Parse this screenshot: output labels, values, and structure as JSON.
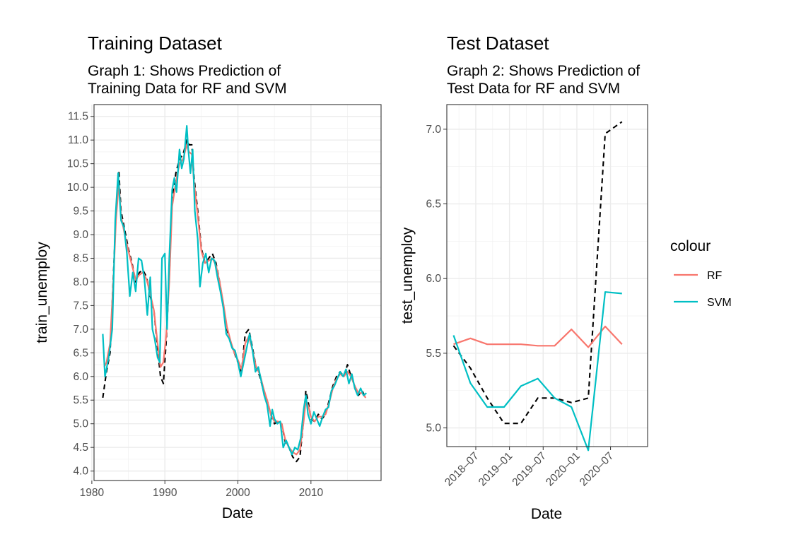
{
  "chart_data": [
    {
      "type": "line",
      "title": "Training Dataset",
      "subtitle": [
        "Graph 1: Shows Prediction of",
        "Training Data for RF and SVM"
      ],
      "xlabel": "Date",
      "ylabel": "train_unemploy",
      "xlim": [
        1980.3,
        2019.6
      ],
      "ylim": [
        3.8,
        11.75
      ],
      "xticks": [
        1980,
        1990,
        2000,
        2010
      ],
      "xtick_labels": [
        "1980",
        "1990",
        "2000",
        "2010"
      ],
      "yticks": [
        4.0,
        4.5,
        5.0,
        5.5,
        6.0,
        6.5,
        7.0,
        7.5,
        8.0,
        8.5,
        9.0,
        9.5,
        10.0,
        10.5,
        11.0,
        11.5
      ],
      "ytick_labels": [
        "4.0",
        "4.5",
        "5.0",
        "5.5",
        "6.0",
        "6.5",
        "7.0",
        "7.5",
        "8.0",
        "8.5",
        "9.0",
        "9.5",
        "10.0",
        "10.5",
        "11.0",
        "11.5"
      ],
      "grid": true,
      "series": [
        {
          "name": "",
          "color": "#000000",
          "dash": true,
          "x": [
            1981.5,
            1982.0,
            1982.5,
            1983.0,
            1983.3,
            1983.7,
            1984.0,
            1984.5,
            1985.0,
            1985.5,
            1986.0,
            1986.5,
            1987.0,
            1987.5,
            1988.0,
            1988.5,
            1989.0,
            1989.4,
            1989.8,
            1990.2,
            1990.6,
            1991.0,
            1991.5,
            1992.0,
            1992.5,
            1993.0,
            1993.3,
            1993.7,
            1994.0,
            1994.5,
            1995.0,
            1995.5,
            1996.0,
            1996.5,
            1997.0,
            1997.5,
            1998.0,
            1998.5,
            1999.0,
            1999.5,
            2000.0,
            2000.5,
            2001.0,
            2001.5,
            2002.0,
            2002.5,
            2003.0,
            2003.5,
            2004.0,
            2004.5,
            2005.0,
            2005.5,
            2006.0,
            2006.5,
            2007.0,
            2007.5,
            2008.0,
            2008.5,
            2009.0,
            2009.3,
            2009.7,
            2010.0,
            2010.5,
            2011.0,
            2011.5,
            2012.0,
            2012.5,
            2013.0,
            2013.5,
            2014.0,
            2014.5,
            2015.0,
            2015.5,
            2016.0,
            2016.5,
            2017.0,
            2017.5
          ],
          "y": [
            5.55,
            6.1,
            6.5,
            8.3,
            9.4,
            10.35,
            9.5,
            9.1,
            8.7,
            8.4,
            8.0,
            8.2,
            8.25,
            8.1,
            7.7,
            7.4,
            6.6,
            6.0,
            5.85,
            6.8,
            8.1,
            9.7,
            10.3,
            10.6,
            10.7,
            11.0,
            10.9,
            10.9,
            10.2,
            9.5,
            8.7,
            8.4,
            8.5,
            8.6,
            8.4,
            8.0,
            7.5,
            7.0,
            6.7,
            6.5,
            6.3,
            6.1,
            6.9,
            7.0,
            6.6,
            6.2,
            6.0,
            5.7,
            5.5,
            5.2,
            5.0,
            5.05,
            5.0,
            4.6,
            4.5,
            4.3,
            4.2,
            4.3,
            5.1,
            5.7,
            5.4,
            5.1,
            5.05,
            5.2,
            5.1,
            5.2,
            5.5,
            5.8,
            6.0,
            6.1,
            6.0,
            6.25,
            6.0,
            5.8,
            5.6,
            5.7,
            5.55
          ]
        },
        {
          "name": "RF",
          "color": "#F8766D",
          "dash": false,
          "x": [
            1981.7,
            1982.0,
            1982.5,
            1983.0,
            1983.3,
            1983.7,
            1984.0,
            1984.5,
            1985.0,
            1985.5,
            1986.0,
            1986.5,
            1987.0,
            1987.5,
            1988.0,
            1988.5,
            1989.0,
            1989.4,
            1989.8,
            1990.2,
            1990.6,
            1991.0,
            1991.5,
            1992.0,
            1992.5,
            1993.0,
            1993.3,
            1993.7,
            1994.0,
            1994.5,
            1995.0,
            1995.5,
            1996.0,
            1996.5,
            1997.0,
            1997.5,
            1998.0,
            1998.5,
            1999.0,
            1999.5,
            2000.0,
            2000.5,
            2001.0,
            2001.5,
            2002.0,
            2002.5,
            2003.0,
            2003.5,
            2004.0,
            2004.5,
            2005.0,
            2005.5,
            2006.0,
            2006.5,
            2007.0,
            2007.5,
            2008.0,
            2008.5,
            2009.0,
            2009.3,
            2009.7,
            2010.0,
            2010.5,
            2011.0,
            2011.5,
            2012.0,
            2012.5,
            2013.0,
            2013.5,
            2014.0,
            2014.5,
            2015.0,
            2015.5,
            2016.0,
            2016.5,
            2017.0,
            2017.5
          ],
          "y": [
            6.2,
            6.3,
            6.7,
            8.2,
            9.3,
            10.1,
            9.4,
            9.0,
            8.65,
            8.35,
            8.05,
            8.15,
            8.2,
            8.05,
            7.75,
            7.4,
            6.7,
            6.2,
            6.3,
            6.9,
            8.0,
            9.6,
            10.1,
            10.5,
            10.6,
            10.9,
            10.75,
            10.7,
            10.1,
            9.4,
            8.65,
            8.4,
            8.45,
            8.5,
            8.35,
            8.0,
            7.55,
            7.05,
            6.75,
            6.5,
            6.35,
            6.15,
            6.7,
            6.85,
            6.55,
            6.2,
            6.05,
            5.75,
            5.5,
            5.2,
            5.05,
            5.05,
            5.0,
            4.65,
            4.5,
            4.4,
            4.35,
            4.45,
            5.05,
            5.5,
            5.35,
            5.15,
            5.05,
            5.15,
            5.15,
            5.2,
            5.45,
            5.75,
            5.95,
            6.05,
            6.0,
            6.1,
            6.0,
            5.8,
            5.65,
            5.65,
            5.55
          ]
        },
        {
          "name": "SVM",
          "color": "#00BFC4",
          "dash": false,
          "x": [
            1981.5,
            1981.8,
            1982.3,
            1982.8,
            1983.2,
            1983.6,
            1984.0,
            1984.4,
            1984.8,
            1985.2,
            1985.6,
            1986.0,
            1986.4,
            1986.8,
            1987.2,
            1987.6,
            1988.0,
            1988.3,
            1988.6,
            1989.0,
            1989.3,
            1989.6,
            1990.0,
            1990.3,
            1990.6,
            1991.0,
            1991.3,
            1991.6,
            1992.0,
            1992.3,
            1992.6,
            1993.0,
            1993.2,
            1993.5,
            1993.8,
            1994.1,
            1994.5,
            1994.8,
            1995.2,
            1995.6,
            1996.0,
            1996.4,
            1996.8,
            1997.2,
            1997.6,
            1998.0,
            1998.4,
            1998.8,
            1999.2,
            1999.6,
            2000.0,
            2000.4,
            2000.8,
            2001.2,
            2001.6,
            2002.0,
            2002.4,
            2002.8,
            2003.2,
            2003.6,
            2004.0,
            2004.4,
            2004.7,
            2005.0,
            2005.4,
            2005.8,
            2006.2,
            2006.6,
            2007.0,
            2007.4,
            2007.8,
            2008.2,
            2008.6,
            2009.0,
            2009.3,
            2009.6,
            2010.0,
            2010.4,
            2010.8,
            2011.2,
            2011.6,
            2012.0,
            2012.4,
            2012.8,
            2013.2,
            2013.6,
            2014.0,
            2014.4,
            2014.8,
            2015.2,
            2015.6,
            2016.0,
            2016.4,
            2016.8,
            2017.2,
            2017.6
          ],
          "y": [
            6.9,
            6.0,
            6.4,
            7.0,
            9.3,
            10.3,
            9.3,
            9.15,
            8.6,
            7.7,
            8.2,
            7.8,
            8.5,
            8.45,
            8.05,
            7.3,
            8.1,
            7.0,
            6.8,
            6.4,
            6.3,
            8.5,
            8.6,
            7.0,
            8.5,
            9.95,
            10.2,
            9.9,
            10.8,
            10.4,
            10.6,
            11.3,
            10.8,
            10.3,
            10.8,
            9.5,
            8.9,
            7.9,
            8.4,
            8.6,
            8.2,
            8.5,
            8.45,
            8.1,
            7.8,
            7.45,
            6.9,
            6.8,
            6.6,
            6.55,
            6.3,
            6.0,
            6.3,
            6.6,
            6.9,
            6.55,
            6.1,
            6.2,
            5.9,
            5.6,
            5.4,
            4.95,
            5.3,
            5.1,
            5.0,
            5.05,
            4.5,
            4.65,
            4.5,
            4.35,
            4.5,
            4.45,
            4.7,
            5.3,
            5.6,
            5.2,
            5.0,
            5.25,
            5.1,
            4.95,
            5.15,
            5.3,
            5.35,
            5.7,
            5.8,
            5.95,
            6.1,
            6.0,
            6.15,
            5.85,
            6.05,
            5.75,
            5.6,
            5.75,
            5.6,
            5.65
          ]
        }
      ]
    },
    {
      "type": "line",
      "title": "Test Dataset",
      "subtitle": [
        "Graph 2: Shows Prediction of",
        "Test Data for RF and SVM"
      ],
      "xlabel": "Date",
      "ylabel": "test_unemploy",
      "xlim": [
        2018.07,
        2021.05
      ],
      "ylim": [
        4.875,
        7.165
      ],
      "xticks": [
        2018.5,
        2019.0,
        2019.5,
        2020.0,
        2020.5
      ],
      "xtick_labels": [
        "2018–07",
        "2019–01",
        "2019–07",
        "2020–01",
        "2020–07"
      ],
      "yticks": [
        5.0,
        5.5,
        6.0,
        6.5,
        7.0
      ],
      "ytick_labels": [
        "5.0",
        "5.5",
        "6.0",
        "6.5",
        "7.0"
      ],
      "grid": true,
      "series": [
        {
          "name": "",
          "color": "#000000",
          "dash": true,
          "x": [
            2018.17,
            2018.42,
            2018.67,
            2018.92,
            2019.17,
            2019.42,
            2019.67,
            2019.92,
            2020.17,
            2020.42,
            2020.67
          ],
          "y": [
            5.55,
            5.4,
            5.2,
            5.03,
            5.03,
            5.2,
            5.2,
            5.17,
            5.2,
            6.97,
            7.05
          ]
        },
        {
          "name": "RF",
          "color": "#F8766D",
          "dash": false,
          "x": [
            2018.17,
            2018.42,
            2018.67,
            2018.92,
            2019.17,
            2019.42,
            2019.67,
            2019.92,
            2020.17,
            2020.42,
            2020.67
          ],
          "y": [
            5.56,
            5.6,
            5.56,
            5.56,
            5.56,
            5.55,
            5.55,
            5.66,
            5.54,
            5.68,
            5.56
          ]
        },
        {
          "name": "SVM",
          "color": "#00BFC4",
          "dash": false,
          "x": [
            2018.17,
            2018.42,
            2018.67,
            2018.92,
            2019.17,
            2019.42,
            2019.67,
            2019.92,
            2020.17,
            2020.42,
            2020.67
          ],
          "y": [
            5.62,
            5.3,
            5.14,
            5.14,
            5.28,
            5.33,
            5.2,
            5.14,
            4.85,
            5.91,
            5.9
          ]
        }
      ]
    }
  ],
  "legend": {
    "title": "colour",
    "items": [
      {
        "label": "RF",
        "color": "#F8766D"
      },
      {
        "label": "SVM",
        "color": "#00BFC4"
      }
    ]
  }
}
